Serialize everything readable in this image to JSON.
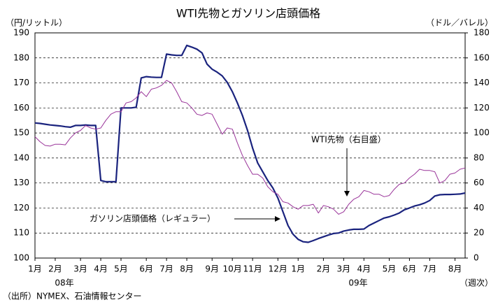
{
  "chart_data": {
    "type": "line",
    "title": "WTI先物とガソリン店頭価格",
    "y_label": "（円/リットル）",
    "y2_label": "（ドル／バレル）",
    "categories": [
      "1月",
      null,
      null,
      null,
      "2月",
      null,
      null,
      null,
      null,
      "3月",
      null,
      null,
      null,
      "4月",
      null,
      null,
      null,
      "5月",
      null,
      null,
      null,
      null,
      "6月",
      null,
      null,
      null,
      "7月",
      null,
      null,
      null,
      "8月",
      null,
      null,
      null,
      null,
      "9月",
      null,
      null,
      null,
      "10月",
      null,
      null,
      null,
      "11月",
      null,
      null,
      null,
      null,
      "12月",
      null,
      null,
      null,
      "1月",
      null,
      null,
      null,
      null,
      "2月",
      null,
      null,
      null,
      "3月",
      null,
      null,
      null,
      "4月",
      null,
      null,
      null,
      null,
      "5月",
      null,
      null,
      null,
      "6月",
      null,
      null,
      null,
      "7月",
      null,
      null,
      null,
      null,
      "8月",
      null,
      null
    ],
    "series": [
      {
        "name": "ガソリン店頭価格（レギュラー）",
        "color": "#1a237e",
        "values": [
          154,
          153.8,
          153.5,
          153.2,
          153,
          152.8,
          152.5,
          152.3,
          153,
          153,
          153.2,
          153,
          153,
          131,
          130.5,
          130.5,
          130.5,
          160,
          160,
          160,
          160.3,
          172,
          172.5,
          172.3,
          172.2,
          172.2,
          181.5,
          181.2,
          181,
          181,
          185,
          184.3,
          183.5,
          182,
          177.5,
          175.5,
          174.3,
          172.8,
          170.2,
          166.5,
          162,
          157,
          151,
          144,
          138,
          134.5,
          131,
          128,
          124,
          118.5,
          113,
          109.5,
          107.5,
          106.5,
          106.3,
          107,
          107.8,
          108.5,
          109.2,
          109.8,
          110,
          110.8,
          111.2,
          111.5,
          111.5,
          111.6,
          113,
          114,
          115,
          116,
          116.5,
          117.2,
          118,
          119.3,
          120,
          120.8,
          121.3,
          122,
          123,
          124.8,
          125.3,
          125.4,
          125.4,
          125.5,
          125.6,
          126
        ]
      },
      {
        "name": "WTI先物（右目盛）",
        "color": "#993399",
        "axis": "y2",
        "values": [
          97,
          93,
          90,
          89.5,
          91,
          91,
          90.5,
          96,
          100,
          102,
          106,
          104,
          103,
          104,
          110,
          115,
          117,
          117,
          124,
          125,
          128,
          133,
          129,
          135,
          136,
          138,
          142,
          140,
          133,
          125,
          124,
          120,
          115,
          114,
          116,
          115,
          107,
          99,
          104,
          103,
          92,
          82,
          74,
          67,
          67,
          64,
          57,
          53,
          51,
          45,
          44,
          41,
          39,
          42,
          42,
          43,
          36,
          42,
          41,
          39,
          35,
          37,
          43,
          47,
          49,
          54,
          53,
          51,
          51,
          49,
          50,
          55,
          59,
          60,
          64,
          67,
          71,
          70,
          70,
          69,
          60,
          62,
          67,
          68,
          71,
          72
        ]
      }
    ],
    "ylim": [
      100,
      190
    ],
    "yticks": [
      100,
      110,
      120,
      130,
      140,
      150,
      160,
      170,
      180,
      190
    ],
    "y2lim": [
      0,
      180
    ],
    "y2ticks": [
      0,
      20,
      40,
      60,
      80,
      100,
      120,
      140,
      160,
      180
    ],
    "grid": true,
    "year_labels": [
      "08年",
      "09年"
    ],
    "x_unit": "（週次）",
    "source": "（出所）NYMEX、石油情報センター"
  }
}
